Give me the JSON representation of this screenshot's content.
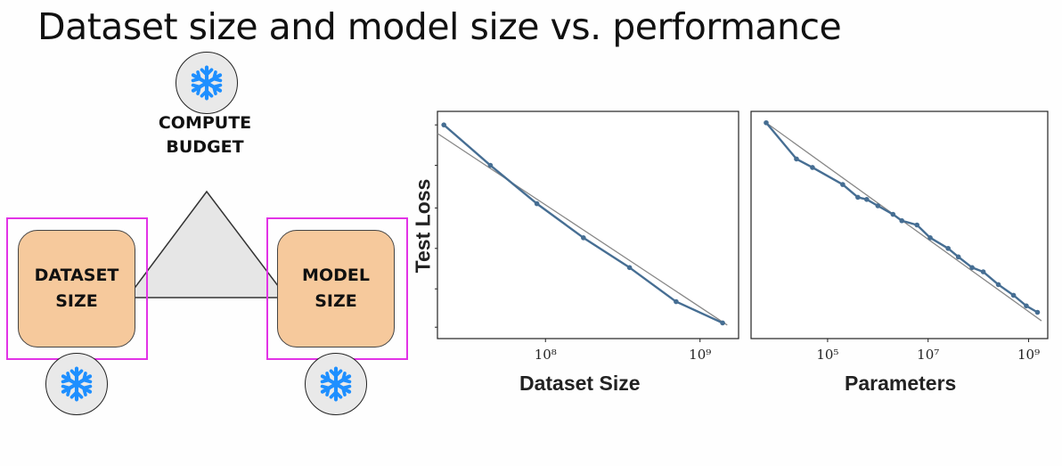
{
  "title": "Dataset size and model size vs. performance",
  "diagram": {
    "compute_label_line1": "COMPUTE",
    "compute_label_line2": "BUDGET",
    "dataset_label_line1": "DATASET",
    "dataset_label_line2": "SIZE",
    "model_label_line1": "MODEL",
    "model_label_line2": "SIZE",
    "icon": "snowflake-icon",
    "colors": {
      "box_fill": "#f6c99c",
      "frame": "#e233e6",
      "snowflake": "#1e8fff",
      "triangle": "#e6e6e6"
    }
  },
  "chart_data": [
    {
      "type": "line",
      "xlabel": "Dataset Size",
      "ylabel": "Test Loss",
      "x_scale": "log",
      "xlim": [
        20000000.0,
        1800000000.0
      ],
      "ylim": [
        0,
        1
      ],
      "x_tick_values": [
        100000000.0,
        1000000000.0
      ],
      "x_ticks": [
        "10⁸",
        "10⁹"
      ],
      "series": [
        {
          "x": [
            22000000.0,
            44000000.0,
            88000000.0,
            176000000.0,
            350000000.0,
            700000000.0,
            1400000000.0
          ],
          "values": [
            0.97,
            0.78,
            0.6,
            0.44,
            0.3,
            0.14,
            0.04
          ]
        }
      ],
      "trend": {
        "x": [
          20000000.0,
          1500000000.0
        ],
        "values": [
          0.93,
          0.03
        ]
      },
      "line_color": "#466e93",
      "trend_color": "#888888"
    },
    {
      "type": "line",
      "xlabel": "Parameters",
      "ylabel": "",
      "x_scale": "log",
      "xlim": [
        3000.0,
        2500000000.0
      ],
      "ylim": [
        0,
        1
      ],
      "x_tick_values": [
        100000.0,
        10000000.0,
        1000000000.0
      ],
      "x_ticks": [
        "10⁵",
        "10⁷",
        "10⁹"
      ],
      "series": [
        {
          "x": [
            6000.0,
            24000.0,
            50000.0,
            200000.0,
            400000.0,
            600000.0,
            1000000.0,
            2000000.0,
            3000000.0,
            6000000.0,
            11000000.0,
            25000000.0,
            40000000.0,
            75000000.0,
            125000000.0,
            250000000.0,
            500000000.0,
            900000000.0,
            1500000000.0
          ],
          "values": [
            0.98,
            0.81,
            0.77,
            0.69,
            0.63,
            0.62,
            0.59,
            0.55,
            0.52,
            0.5,
            0.44,
            0.39,
            0.35,
            0.3,
            0.28,
            0.22,
            0.17,
            0.12,
            0.09
          ]
        }
      ],
      "trend": {
        "x": [
          6000.0,
          1800000000.0
        ],
        "values": [
          0.98,
          0.05
        ]
      },
      "line_color": "#466e93",
      "trend_color": "#888888"
    }
  ]
}
